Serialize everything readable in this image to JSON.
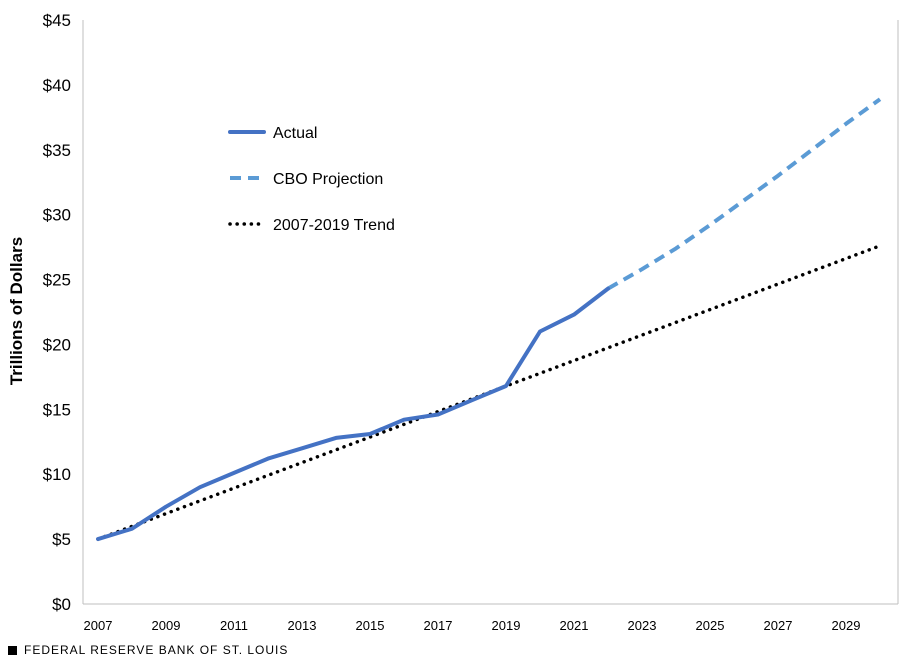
{
  "chart_data": {
    "type": "line",
    "ylabel": "Trillions of Dollars",
    "ylim": [
      0,
      45
    ],
    "yticks": [
      0,
      5,
      10,
      15,
      20,
      25,
      30,
      35,
      40,
      45
    ],
    "ytick_labels": [
      "$0",
      "$5",
      "$10",
      "$15",
      "$20",
      "$25",
      "$30",
      "$35",
      "$40",
      "$45"
    ],
    "xlim": [
      2007,
      2030
    ],
    "xticks": [
      2007,
      2009,
      2011,
      2013,
      2015,
      2017,
      2019,
      2021,
      2023,
      2025,
      2027,
      2029
    ],
    "xtick_labels": [
      "2007",
      "2009",
      "2011",
      "2013",
      "2015",
      "2017",
      "2019",
      "2021",
      "2023",
      "2025",
      "2027",
      "2029"
    ],
    "grid": false,
    "legend_position": "upper-left inside plot",
    "series": [
      {
        "name": "Actual",
        "style": "solid",
        "color": "#4472c4",
        "x": [
          2007,
          2008,
          2009,
          2010,
          2011,
          2012,
          2013,
          2014,
          2015,
          2016,
          2017,
          2018,
          2019,
          2020,
          2021,
          2022
        ],
        "values": [
          5.0,
          5.8,
          7.5,
          9.0,
          10.1,
          11.2,
          12.0,
          12.8,
          13.1,
          14.2,
          14.6,
          15.7,
          16.8,
          21.0,
          22.3,
          24.3
        ]
      },
      {
        "name": "CBO Projection",
        "style": "dashed",
        "color": "#5b9bd5",
        "x": [
          2022,
          2023,
          2024,
          2025,
          2026,
          2027,
          2028,
          2029,
          2030
        ],
        "values": [
          24.3,
          25.8,
          27.4,
          29.2,
          31.1,
          33.0,
          35.0,
          37.0,
          38.9
        ]
      },
      {
        "name": "2007-2019 Trend",
        "style": "dotted",
        "color": "#000000",
        "x": [
          2007,
          2030
        ],
        "values": [
          5.0,
          27.6
        ]
      }
    ]
  },
  "footer": {
    "source": "FEDERAL RESERVE BANK OF ST. LOUIS"
  }
}
